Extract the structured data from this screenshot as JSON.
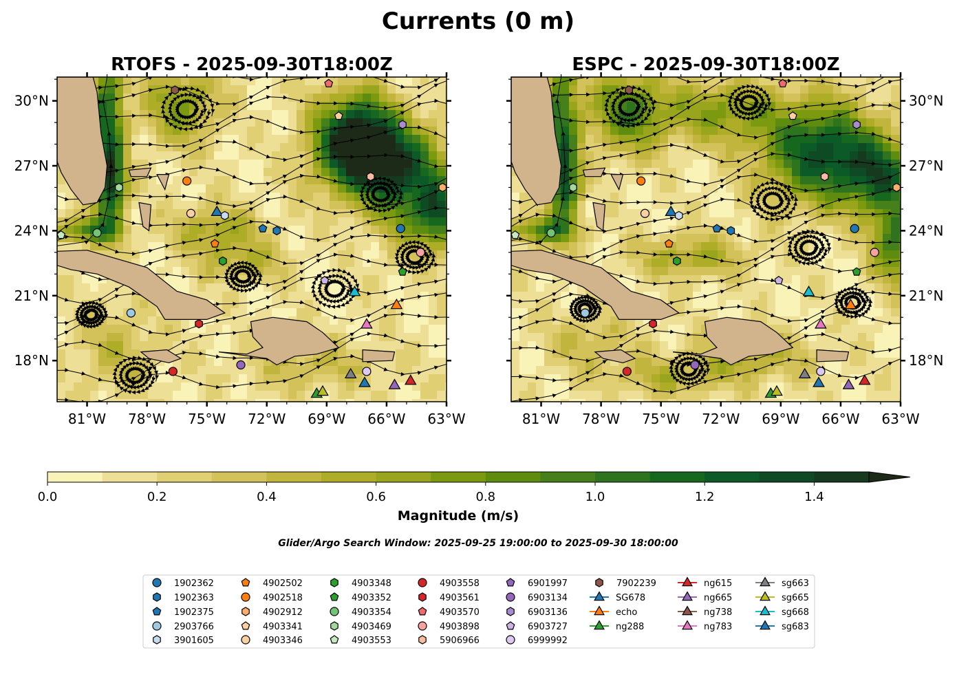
{
  "figure": {
    "title": "Currents (0 m)",
    "search_window": "Glider/Argo Search Window: 2025-09-25 19:00:00 to 2025-09-30 18:00:00"
  },
  "panels": [
    {
      "title": "RTOFS - 2025-09-30T18:00Z",
      "lat_axis_side": "left"
    },
    {
      "title": "ESPC - 2025-09-30T18:00Z",
      "lat_axis_side": "right"
    }
  ],
  "axes": {
    "lon_ticks": [
      -81,
      -78,
      -75,
      -72,
      -69,
      -66,
      -63
    ],
    "lon_labels": [
      "81°W",
      "78°W",
      "75°W",
      "72°W",
      "69°W",
      "66°W",
      "63°W"
    ],
    "lat_ticks": [
      18,
      21,
      24,
      27,
      30
    ],
    "lat_labels": [
      "18°N",
      "21°N",
      "24°N",
      "27°N",
      "30°N"
    ],
    "lon_range": [
      -82.5,
      -63
    ],
    "lat_range": [
      16.1,
      31.1
    ]
  },
  "colorbar": {
    "label": "Magnitude (m/s)",
    "ticks": [
      0,
      0.2,
      0.4,
      0.6,
      0.8,
      1.0,
      1.2,
      1.4
    ],
    "tick_labels": [
      "0.0",
      "0.2",
      "0.4",
      "0.6",
      "0.8",
      "1.0",
      "1.2",
      "1.4"
    ],
    "range": [
      0,
      1.5
    ],
    "extend": "max",
    "step": 0.1,
    "colors": [
      "#faf3b7",
      "#eedf96",
      "#e0cf73",
      "#d3c25a",
      "#c2b53e",
      "#adad28",
      "#98a51d",
      "#7c9a10",
      "#5e8c0f",
      "#46801a",
      "#2e741f",
      "#17681f",
      "#0c5a27",
      "#0e4a24",
      "#163a1e",
      "#1c2a17"
    ]
  },
  "colors": {
    "land": "#d2b48c",
    "marker_edge": "#000000"
  },
  "chart_data": {
    "type": "map",
    "legend": {
      "placement": "bottom-center",
      "entries": [
        {
          "label": "1902362",
          "marker": "circle",
          "color": "#1f77b4"
        },
        {
          "label": "1902363",
          "marker": "hexagon",
          "color": "#1f77b4"
        },
        {
          "label": "1902375",
          "marker": "pentagon",
          "color": "#1f77b4"
        },
        {
          "label": "2903766",
          "marker": "circle",
          "color": "#9ecae1"
        },
        {
          "label": "3901605",
          "marker": "hexagon",
          "color": "#c6dbef"
        },
        {
          "label": "4902502",
          "marker": "pentagon",
          "color": "#ff7f0e"
        },
        {
          "label": "4902518",
          "marker": "circle",
          "color": "#ff7f0e"
        },
        {
          "label": "4902912",
          "marker": "hexagon",
          "color": "#fdae6b"
        },
        {
          "label": "4903341",
          "marker": "pentagon",
          "color": "#fdd0a2"
        },
        {
          "label": "4903346",
          "marker": "circle",
          "color": "#fdd0a2"
        },
        {
          "label": "4903348",
          "marker": "hexagon",
          "color": "#2ca02c"
        },
        {
          "label": "4903352",
          "marker": "pentagon",
          "color": "#2ca02c"
        },
        {
          "label": "4903354",
          "marker": "circle",
          "color": "#74c476"
        },
        {
          "label": "4903469",
          "marker": "hexagon",
          "color": "#a1d99b"
        },
        {
          "label": "4903553",
          "marker": "pentagon",
          "color": "#c7e9c0"
        },
        {
          "label": "4903558",
          "marker": "circle",
          "color": "#d62728"
        },
        {
          "label": "4903561",
          "marker": "hexagon",
          "color": "#d62728"
        },
        {
          "label": "4903570",
          "marker": "pentagon",
          "color": "#ef6b6b"
        },
        {
          "label": "4903898",
          "marker": "circle",
          "color": "#f7a1a1"
        },
        {
          "label": "5906966",
          "marker": "hexagon",
          "color": "#fcbba1"
        },
        {
          "label": "6901997",
          "marker": "pentagon",
          "color": "#9467bd"
        },
        {
          "label": "6903134",
          "marker": "circle",
          "color": "#9467bd"
        },
        {
          "label": "6903136",
          "marker": "hexagon",
          "color": "#a98bd1"
        },
        {
          "label": "6903727",
          "marker": "pentagon",
          "color": "#cbb3e3"
        },
        {
          "label": "6999992",
          "marker": "circle",
          "color": "#dcc8f0"
        },
        {
          "label": "7902239",
          "marker": "hexagon",
          "color": "#8c564b"
        },
        {
          "label": "SG678",
          "marker": "triangle",
          "color": "#1f77b4"
        },
        {
          "label": "echo",
          "marker": "triangle",
          "color": "#ff7f0e"
        },
        {
          "label": "ng288",
          "marker": "triangle",
          "color": "#2ca02c"
        },
        {
          "label": "ng615",
          "marker": "triangle",
          "color": "#d62728"
        },
        {
          "label": "ng665",
          "marker": "triangle",
          "color": "#9467bd"
        },
        {
          "label": "ng738",
          "marker": "triangle",
          "color": "#8c564b"
        },
        {
          "label": "ng783",
          "marker": "triangle",
          "color": "#e377c2"
        },
        {
          "label": "sg663",
          "marker": "triangle",
          "color": "#7f7f7f"
        },
        {
          "label": "sg665",
          "marker": "triangle",
          "color": "#bcbd22"
        },
        {
          "label": "sg668",
          "marker": "triangle",
          "color": "#17becf"
        },
        {
          "label": "sg683",
          "marker": "triangle",
          "color": "#1f77b4"
        }
      ]
    },
    "platforms": [
      {
        "id": "7902239",
        "lon": -76.6,
        "lat": 30.5
      },
      {
        "id": "4903570",
        "lon": -68.9,
        "lat": 30.8
      },
      {
        "id": "4903341",
        "lon": -68.4,
        "lat": 29.3
      },
      {
        "id": "6903136",
        "lon": -65.2,
        "lat": 28.9
      },
      {
        "id": "5906966",
        "lon": -66.8,
        "lat": 26.5
      },
      {
        "id": "4902912",
        "lon": -63.2,
        "lat": 26.0
      },
      {
        "id": "4903469",
        "lon": -79.4,
        "lat": 26.0
      },
      {
        "id": "4902518",
        "lon": -76.0,
        "lat": 26.3
      },
      {
        "id": "4903346",
        "lon": -75.8,
        "lat": 24.8
      },
      {
        "id": "SG678",
        "lon": -74.5,
        "lat": 24.9
      },
      {
        "id": "3901605",
        "lon": -74.1,
        "lat": 24.7
      },
      {
        "id": "1902375",
        "lon": -72.2,
        "lat": 24.1
      },
      {
        "id": "1902363",
        "lon": -71.5,
        "lat": 24.0
      },
      {
        "id": "1902362",
        "lon": -65.3,
        "lat": 24.1
      },
      {
        "id": "4903553",
        "lon": -82.3,
        "lat": 23.8
      },
      {
        "id": "4903354",
        "lon": -80.5,
        "lat": 23.9
      },
      {
        "id": "4902502",
        "lon": -74.6,
        "lat": 23.4
      },
      {
        "id": "4903348",
        "lon": -74.2,
        "lat": 22.6
      },
      {
        "id": "4903898",
        "lon": -64.3,
        "lat": 23.0
      },
      {
        "id": "4903352",
        "lon": -65.2,
        "lat": 22.1
      },
      {
        "id": "6903727",
        "lon": -69.1,
        "lat": 21.7
      },
      {
        "id": "sg668",
        "lon": -67.6,
        "lat": 21.2
      },
      {
        "id": "echo",
        "lon": -65.5,
        "lat": 20.6
      },
      {
        "id": "ng783",
        "lon": -67.0,
        "lat": 19.7
      },
      {
        "id": "2903766",
        "lon": -78.8,
        "lat": 20.2
      },
      {
        "id": "4903561",
        "lon": -75.4,
        "lat": 19.7
      },
      {
        "id": "6903134",
        "lon": -73.3,
        "lat": 17.8
      },
      {
        "id": "4903558",
        "lon": -76.7,
        "lat": 17.5
      },
      {
        "id": "sg663",
        "lon": -67.8,
        "lat": 17.4
      },
      {
        "id": "6999992",
        "lon": -67.0,
        "lat": 17.5
      },
      {
        "id": "sg683",
        "lon": -67.1,
        "lat": 17.0
      },
      {
        "id": "ng665",
        "lon": -65.6,
        "lat": 16.9
      },
      {
        "id": "ng615",
        "lon": -64.8,
        "lat": 17.1
      },
      {
        "id": "ng288",
        "lon": -69.5,
        "lat": 16.5
      },
      {
        "id": "sg665",
        "lon": -69.2,
        "lat": 16.6
      }
    ]
  }
}
